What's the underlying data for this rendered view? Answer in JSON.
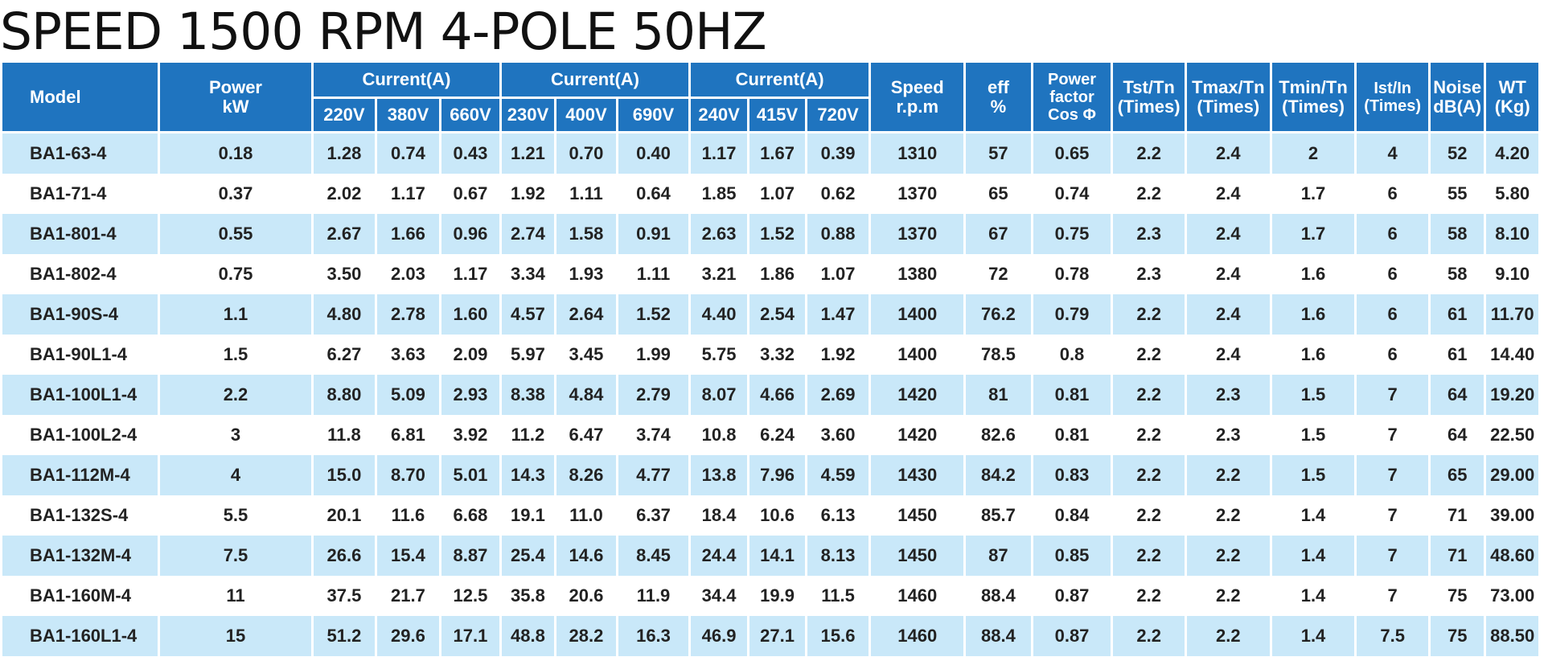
{
  "title": "SPEED 1500 RPM 4-POLE 50HZ",
  "header": {
    "model": "Model",
    "power_line1": "Power",
    "power_line2": "kW",
    "current_group_1": "Current(A)",
    "current_group_2": "Current(A)",
    "current_group_3": "Current(A)",
    "speed_line1": "Speed",
    "speed_line2": "r.p.m",
    "eff_line1": "eff",
    "eff_line2": "%",
    "pf_line1": "Power",
    "pf_line2": "factor",
    "pf_line3": "Cos Φ",
    "tst_line1": "Tst/Tn",
    "tst_line2": "(Times)",
    "tmax_line1": "Tmax/Tn",
    "tmax_line2": "(Times)",
    "tmin_line1": "Tmin/Tn",
    "tmin_line2": "(Times)",
    "ist_line1": "Ist/In",
    "ist_line2": "(Times)",
    "noise_line1": "Noise",
    "noise_line2": "dB(A)",
    "wt_line1": "WT",
    "wt_line2": "(Kg)",
    "voltages": [
      "220V",
      "380V",
      "660V",
      "230V",
      "400V",
      "690V",
      "240V",
      "415V",
      "720V"
    ]
  },
  "rows": [
    [
      "BA1-63-4",
      "0.18",
      "1.28",
      "0.74",
      "0.43",
      "1.21",
      "0.70",
      "0.40",
      "1.17",
      "1.67",
      "0.39",
      "1310",
      "57",
      "0.65",
      "2.2",
      "2.4",
      "2",
      "4",
      "52",
      "4.20"
    ],
    [
      "BA1-71-4",
      "0.37",
      "2.02",
      "1.17",
      "0.67",
      "1.92",
      "1.11",
      "0.64",
      "1.85",
      "1.07",
      "0.62",
      "1370",
      "65",
      "0.74",
      "2.2",
      "2.4",
      "1.7",
      "6",
      "55",
      "5.80"
    ],
    [
      "BA1-801-4",
      "0.55",
      "2.67",
      "1.66",
      "0.96",
      "2.74",
      "1.58",
      "0.91",
      "2.63",
      "1.52",
      "0.88",
      "1370",
      "67",
      "0.75",
      "2.3",
      "2.4",
      "1.7",
      "6",
      "58",
      "8.10"
    ],
    [
      "BA1-802-4",
      "0.75",
      "3.50",
      "2.03",
      "1.17",
      "3.34",
      "1.93",
      "1.11",
      "3.21",
      "1.86",
      "1.07",
      "1380",
      "72",
      "0.78",
      "2.3",
      "2.4",
      "1.6",
      "6",
      "58",
      "9.10"
    ],
    [
      "BA1-90S-4",
      "1.1",
      "4.80",
      "2.78",
      "1.60",
      "4.57",
      "2.64",
      "1.52",
      "4.40",
      "2.54",
      "1.47",
      "1400",
      "76.2",
      "0.79",
      "2.2",
      "2.4",
      "1.6",
      "6",
      "61",
      "11.70"
    ],
    [
      "BA1-90L1-4",
      "1.5",
      "6.27",
      "3.63",
      "2.09",
      "5.97",
      "3.45",
      "1.99",
      "5.75",
      "3.32",
      "1.92",
      "1400",
      "78.5",
      "0.8",
      "2.2",
      "2.4",
      "1.6",
      "6",
      "61",
      "14.40"
    ],
    [
      "BA1-100L1-4",
      "2.2",
      "8.80",
      "5.09",
      "2.93",
      "8.38",
      "4.84",
      "2.79",
      "8.07",
      "4.66",
      "2.69",
      "1420",
      "81",
      "0.81",
      "2.2",
      "2.3",
      "1.5",
      "7",
      "64",
      "19.20"
    ],
    [
      "BA1-100L2-4",
      "3",
      "11.8",
      "6.81",
      "3.92",
      "11.2",
      "6.47",
      "3.74",
      "10.8",
      "6.24",
      "3.60",
      "1420",
      "82.6",
      "0.81",
      "2.2",
      "2.3",
      "1.5",
      "7",
      "64",
      "22.50"
    ],
    [
      "BA1-112M-4",
      "4",
      "15.0",
      "8.70",
      "5.01",
      "14.3",
      "8.26",
      "4.77",
      "13.8",
      "7.96",
      "4.59",
      "1430",
      "84.2",
      "0.83",
      "2.2",
      "2.2",
      "1.5",
      "7",
      "65",
      "29.00"
    ],
    [
      "BA1-132S-4",
      "5.5",
      "20.1",
      "11.6",
      "6.68",
      "19.1",
      "11.0",
      "6.37",
      "18.4",
      "10.6",
      "6.13",
      "1450",
      "85.7",
      "0.84",
      "2.2",
      "2.2",
      "1.4",
      "7",
      "71",
      "39.00"
    ],
    [
      "BA1-132M-4",
      "7.5",
      "26.6",
      "15.4",
      "8.87",
      "25.4",
      "14.6",
      "8.45",
      "24.4",
      "14.1",
      "8.13",
      "1450",
      "87",
      "0.85",
      "2.2",
      "2.2",
      "1.4",
      "7",
      "71",
      "48.60"
    ],
    [
      "BA1-160M-4",
      "11",
      "37.5",
      "21.7",
      "12.5",
      "35.8",
      "20.6",
      "11.9",
      "34.4",
      "19.9",
      "11.5",
      "1460",
      "88.4",
      "0.87",
      "2.2",
      "2.2",
      "1.4",
      "7",
      "75",
      "73.00"
    ],
    [
      "BA1-160L1-4",
      "15",
      "51.2",
      "29.6",
      "17.1",
      "48.8",
      "28.2",
      "16.3",
      "46.9",
      "27.1",
      "15.6",
      "1460",
      "88.4",
      "0.87",
      "2.2",
      "2.2",
      "1.4",
      "7.5",
      "75",
      "88.50"
    ]
  ],
  "colors": {
    "header_bg": "#1f74bf",
    "row_stripe": "#c9e8f9",
    "row_plain": "#ffffff"
  }
}
